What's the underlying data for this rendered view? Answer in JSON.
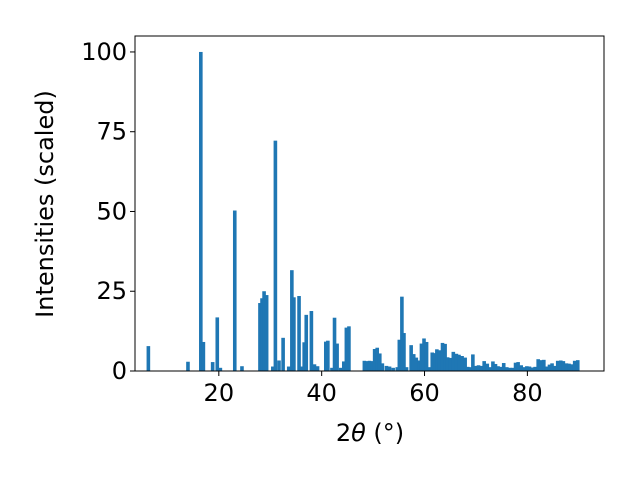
{
  "chart_data": {
    "type": "bar",
    "xlabel_prefix": "2",
    "xlabel_symbol": "θ",
    "xlabel_unit": " (°)",
    "ylabel": "Intensities (scaled)",
    "xlim": [
      3.7,
      94.9
    ],
    "ylim": [
      0,
      105
    ],
    "x_ticks": [
      20,
      40,
      60,
      80
    ],
    "y_ticks": [
      0,
      25,
      50,
      75,
      100
    ],
    "bar_width": 0.7,
    "bar_color": "#1f77b4",
    "grid": false,
    "legend": "none",
    "x": [
      6.3,
      14.0,
      16.5,
      17.0,
      18.8,
      19.7,
      20.3,
      23.1,
      24.5,
      28.0,
      28.4,
      28.8,
      29.3,
      30.5,
      31.0,
      31.7,
      32.5,
      33.6,
      34.2,
      34.6,
      35.6,
      36.2,
      36.6,
      37.0,
      38.0,
      38.6,
      39.2,
      40.8,
      41.2,
      42.0,
      42.5,
      43.0,
      43.7,
      44.3,
      44.8,
      45.3,
      48.3,
      48.8,
      49.3,
      49.8,
      50.3,
      50.8,
      51.3,
      51.8,
      52.6,
      53.2,
      53.9,
      54.7,
      55.1,
      55.6,
      56.0,
      56.5,
      57.4,
      57.9,
      58.4,
      58.9,
      59.4,
      59.9,
      60.4,
      60.9,
      61.5,
      62.0,
      62.4,
      62.9,
      63.5,
      64.0,
      64.5,
      65.1,
      65.6,
      66.2,
      66.7,
      67.3,
      67.9,
      68.4,
      68.9,
      69.4,
      70.0,
      70.5,
      71.1,
      71.6,
      72.2,
      72.7,
      73.3,
      73.8,
      74.3,
      74.9,
      75.4,
      76.0,
      76.6,
      77.1,
      77.7,
      78.2,
      78.8,
      79.3,
      79.9,
      80.4,
      81.0,
      81.5,
      82.1,
      82.6,
      83.2,
      83.7,
      84.3,
      84.8,
      85.4,
      85.9,
      86.5,
      87.0,
      87.6,
      88.1,
      88.7,
      89.2,
      89.8
    ],
    "values": [
      7.8,
      2.9,
      100.0,
      9.1,
      2.8,
      16.8,
      1.0,
      50.3,
      1.5,
      21.3,
      22.8,
      25.0,
      23.8,
      1.4,
      72.2,
      3.3,
      10.4,
      1.4,
      31.6,
      23.1,
      23.5,
      1.4,
      9.0,
      17.6,
      18.8,
      2.1,
      1.5,
      9.2,
      9.5,
      1.0,
      16.7,
      8.6,
      1.0,
      3.0,
      13.6,
      14.0,
      3.2,
      3.1,
      3.2,
      3.1,
      6.9,
      7.3,
      5.5,
      2.4,
      1.6,
      1.4,
      1.0,
      1.2,
      9.8,
      23.3,
      11.9,
      1.2,
      8.1,
      5.3,
      4.2,
      3.3,
      8.6,
      10.2,
      9.1,
      1.2,
      5.8,
      5.6,
      6.8,
      6.5,
      8.8,
      8.5,
      4.3,
      4.1,
      6.0,
      5.4,
      5.1,
      4.7,
      4.2,
      1.3,
      1.2,
      5.2,
      1.6,
      1.8,
      1.6,
      3.1,
      2.3,
      1.2,
      3.0,
      2.2,
      1.5,
      1.3,
      2.5,
      1.2,
      1.0,
      1.0,
      2.6,
      2.8,
      1.8,
      1.2,
      1.5,
      1.4,
      1.1,
      1.3,
      3.7,
      3.4,
      3.5,
      1.4,
      2.0,
      2.4,
      1.6,
      3.2,
      3.3,
      3.1,
      2.4,
      2.3,
      2.1,
      3.2,
      3.4
    ]
  }
}
